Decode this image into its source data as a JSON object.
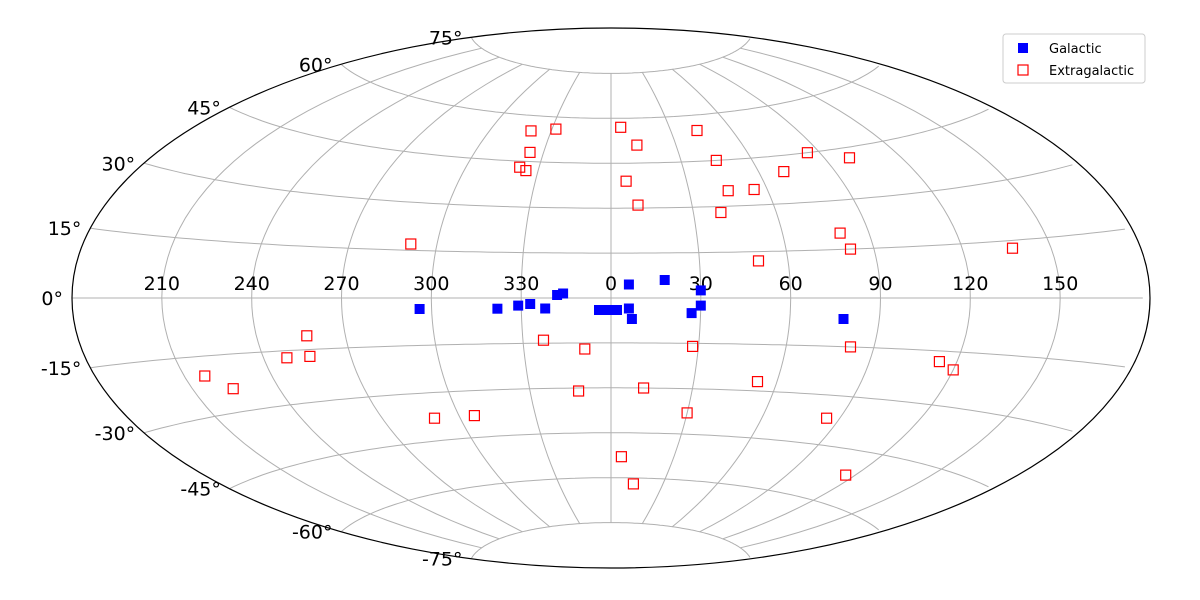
{
  "chart_data": {
    "type": "scatter",
    "projection": "aitoff",
    "grid": true,
    "legend_placement": "top-right",
    "lon_tick_labels": [
      "210",
      "240",
      "270",
      "300",
      "330",
      "0",
      "30",
      "60",
      "90",
      "120",
      "150"
    ],
    "lat_tick_labels": [
      "-75°",
      "-60°",
      "-45°",
      "-30°",
      "-15°",
      "0°",
      "15°",
      "30°",
      "45°",
      "60°",
      "75°"
    ],
    "series": [
      {
        "name": "Galactic",
        "color": "#0000ff",
        "marker": "filled-square",
        "points": [
          {
            "l": 296,
            "b": -3.5
          },
          {
            "l": 322,
            "b": -3.5
          },
          {
            "l": 329,
            "b": -2.5
          },
          {
            "l": 333,
            "b": -2
          },
          {
            "l": 338,
            "b": -3.5
          },
          {
            "l": 342,
            "b": 1
          },
          {
            "l": 344,
            "b": 1.5
          },
          {
            "l": 356,
            "b": -4
          },
          {
            "l": 359,
            "b": -4
          },
          {
            "l": 2,
            "b": -4
          },
          {
            "l": 6,
            "b": 4.5
          },
          {
            "l": 6,
            "b": -3.5
          },
          {
            "l": 7,
            "b": -7
          },
          {
            "l": 18,
            "b": 6
          },
          {
            "l": 27,
            "b": -5
          },
          {
            "l": 30,
            "b": 2.5
          },
          {
            "l": 30,
            "b": -2.5
          },
          {
            "l": 78,
            "b": -6.5
          }
        ]
      },
      {
        "name": "Extragalactic",
        "color": "#ff0000",
        "marker": "open-square",
        "points": [
          {
            "l": 320,
            "b": 55
          },
          {
            "l": 332,
            "b": 56
          },
          {
            "l": 324,
            "b": 48
          },
          {
            "l": 322,
            "b": 43
          },
          {
            "l": 325,
            "b": 42
          },
          {
            "l": 5,
            "b": 57
          },
          {
            "l": 12,
            "b": 51
          },
          {
            "l": 6,
            "b": 39
          },
          {
            "l": 10,
            "b": 31
          },
          {
            "l": 43,
            "b": 55
          },
          {
            "l": 45,
            "b": 45
          },
          {
            "l": 45,
            "b": 35
          },
          {
            "l": 40,
            "b": 28
          },
          {
            "l": 55,
            "b": 35
          },
          {
            "l": 70,
            "b": 40
          },
          {
            "l": 85,
            "b": 45
          },
          {
            "l": 100,
            "b": 42
          },
          {
            "l": 80,
            "b": 20
          },
          {
            "l": 82,
            "b": 15
          },
          {
            "l": 50,
            "b": 12
          },
          {
            "l": 137,
            "b": 13
          },
          {
            "l": 291,
            "b": 17
          },
          {
            "l": 257,
            "b": -11
          },
          {
            "l": 248,
            "b": -17
          },
          {
            "l": 256,
            "b": -17
          },
          {
            "l": 217,
            "b": -20
          },
          {
            "l": 224,
            "b": -24
          },
          {
            "l": 337,
            "b": -14
          },
          {
            "l": 351,
            "b": -17
          },
          {
            "l": 28,
            "b": -16
          },
          {
            "l": 82,
            "b": -15
          },
          {
            "l": 114,
            "b": -18
          },
          {
            "l": 120,
            "b": -20
          },
          {
            "l": 53,
            "b": -27
          },
          {
            "l": 12,
            "b": -30
          },
          {
            "l": 348,
            "b": -31
          },
          {
            "l": 290,
            "b": -38
          },
          {
            "l": 306,
            "b": -38
          },
          {
            "l": 30,
            "b": -38
          },
          {
            "l": 85,
            "b": -37
          },
          {
            "l": 5,
            "b": -53
          },
          {
            "l": 13,
            "b": -62
          },
          {
            "l": 116,
            "b": -52
          }
        ]
      }
    ]
  }
}
